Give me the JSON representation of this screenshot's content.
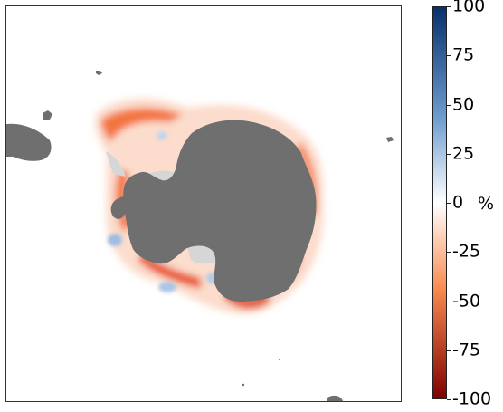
{
  "colorbar": {
    "unit": "%",
    "ticks": [
      {
        "value": 100,
        "label": "100"
      },
      {
        "value": 75,
        "label": "75"
      },
      {
        "value": 50,
        "label": "50"
      },
      {
        "value": 25,
        "label": "25"
      },
      {
        "value": 0,
        "label": "0"
      },
      {
        "value": -25,
        "label": "-25"
      },
      {
        "value": -50,
        "label": "-50"
      },
      {
        "value": -75,
        "label": "-75"
      },
      {
        "value": -100,
        "label": "-100"
      }
    ],
    "range": [
      -100,
      100
    ],
    "colors": {
      "top": "#08306b",
      "upper_mid": "#6c9bcf",
      "zero": "#ffffff",
      "lower_mid": "#f98a50",
      "bottom": "#7f0000"
    }
  },
  "map": {
    "land_color": "#6f6f6f",
    "ice_shelf_color": "#d6d6d6",
    "decrease_color": "#f2561d",
    "increase_color": "#6c9bcf"
  }
}
